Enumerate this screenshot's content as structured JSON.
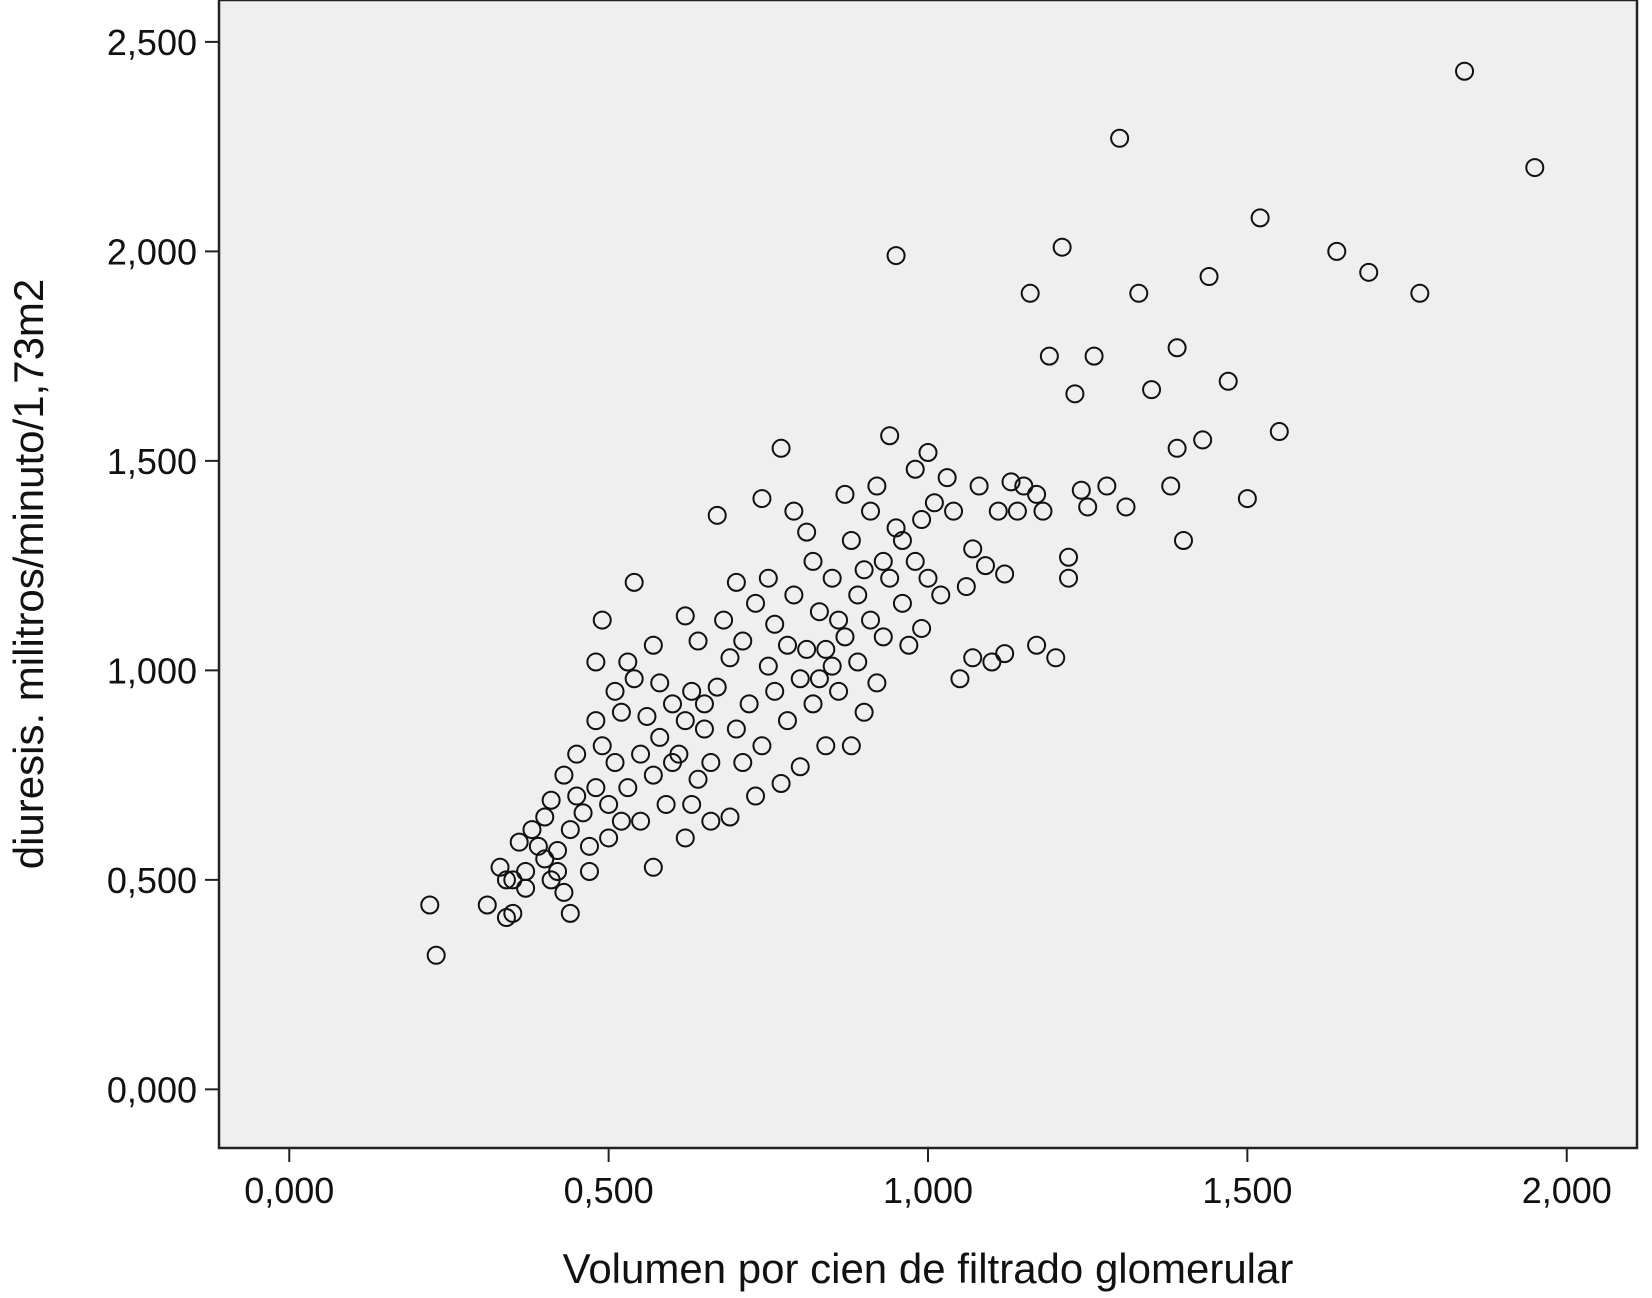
{
  "chart_data": {
    "type": "scatter",
    "title": "",
    "xlabel": "Volumen por cien de filtrado glomerular",
    "ylabel": "diuresis. militros/minuto/1,73m2",
    "xlim": [
      -0.11,
      2.11
    ],
    "ylim": [
      -0.14,
      2.6
    ],
    "x_ticks": [
      0,
      0.5,
      1.0,
      1.5,
      2.0
    ],
    "x_tick_labels": [
      "0,000",
      "0,500",
      "1,000",
      "1,500",
      "2,000"
    ],
    "y_ticks": [
      0,
      0.5,
      1.0,
      1.5,
      2.0,
      2.5
    ],
    "y_tick_labels": [
      "0,000",
      "0,500",
      "1,000",
      "1,500",
      "2,000",
      "2,500"
    ],
    "grid": false,
    "plot_background": "#efefef",
    "marker": "open-circle",
    "marker_color": "#111111",
    "points": [
      [
        0.22,
        0.44
      ],
      [
        0.23,
        0.32
      ],
      [
        0.31,
        0.44
      ],
      [
        0.33,
        0.53
      ],
      [
        0.34,
        0.5
      ],
      [
        0.34,
        0.41
      ],
      [
        0.35,
        0.42
      ],
      [
        0.35,
        0.5
      ],
      [
        0.36,
        0.59
      ],
      [
        0.37,
        0.52
      ],
      [
        0.37,
        0.48
      ],
      [
        0.38,
        0.62
      ],
      [
        0.39,
        0.58
      ],
      [
        0.4,
        0.65
      ],
      [
        0.4,
        0.55
      ],
      [
        0.41,
        0.69
      ],
      [
        0.41,
        0.5
      ],
      [
        0.42,
        0.52
      ],
      [
        0.42,
        0.57
      ],
      [
        0.43,
        0.75
      ],
      [
        0.43,
        0.47
      ],
      [
        0.44,
        0.42
      ],
      [
        0.44,
        0.62
      ],
      [
        0.45,
        0.7
      ],
      [
        0.45,
        0.8
      ],
      [
        0.46,
        0.66
      ],
      [
        0.47,
        0.52
      ],
      [
        0.47,
        0.58
      ],
      [
        0.48,
        0.88
      ],
      [
        0.48,
        0.72
      ],
      [
        0.48,
        1.02
      ],
      [
        0.49,
        1.12
      ],
      [
        0.49,
        0.82
      ],
      [
        0.5,
        0.68
      ],
      [
        0.5,
        0.6
      ],
      [
        0.51,
        0.78
      ],
      [
        0.51,
        0.95
      ],
      [
        0.52,
        0.64
      ],
      [
        0.52,
        0.9
      ],
      [
        0.53,
        0.72
      ],
      [
        0.53,
        1.02
      ],
      [
        0.54,
        0.98
      ],
      [
        0.54,
        1.21
      ],
      [
        0.55,
        0.8
      ],
      [
        0.55,
        0.64
      ],
      [
        0.56,
        0.89
      ],
      [
        0.57,
        0.75
      ],
      [
        0.57,
        1.06
      ],
      [
        0.57,
        0.53
      ],
      [
        0.58,
        0.84
      ],
      [
        0.58,
        0.97
      ],
      [
        0.59,
        0.68
      ],
      [
        0.6,
        0.78
      ],
      [
        0.6,
        0.92
      ],
      [
        0.61,
        0.8
      ],
      [
        0.62,
        0.88
      ],
      [
        0.62,
        1.13
      ],
      [
        0.62,
        0.6
      ],
      [
        0.63,
        0.95
      ],
      [
        0.63,
        0.68
      ],
      [
        0.64,
        0.74
      ],
      [
        0.64,
        1.07
      ],
      [
        0.65,
        0.86
      ],
      [
        0.65,
        0.92
      ],
      [
        0.66,
        0.78
      ],
      [
        0.66,
        0.64
      ],
      [
        0.67,
        1.37
      ],
      [
        0.67,
        0.96
      ],
      [
        0.68,
        1.12
      ],
      [
        0.69,
        1.03
      ],
      [
        0.69,
        0.65
      ],
      [
        0.7,
        0.86
      ],
      [
        0.7,
        1.21
      ],
      [
        0.71,
        0.78
      ],
      [
        0.71,
        1.07
      ],
      [
        0.72,
        0.92
      ],
      [
        0.73,
        1.16
      ],
      [
        0.73,
        0.7
      ],
      [
        0.74,
        1.41
      ],
      [
        0.74,
        0.82
      ],
      [
        0.75,
        1.01
      ],
      [
        0.75,
        1.22
      ],
      [
        0.76,
        0.95
      ],
      [
        0.76,
        1.11
      ],
      [
        0.77,
        0.73
      ],
      [
        0.77,
        1.53
      ],
      [
        0.78,
        1.06
      ],
      [
        0.78,
        0.88
      ],
      [
        0.79,
        1.38
      ],
      [
        0.79,
        1.18
      ],
      [
        0.8,
        0.98
      ],
      [
        0.8,
        0.77
      ],
      [
        0.81,
        1.33
      ],
      [
        0.81,
        1.05
      ],
      [
        0.82,
        1.26
      ],
      [
        0.82,
        0.92
      ],
      [
        0.83,
        0.98
      ],
      [
        0.83,
        1.14
      ],
      [
        0.84,
        0.82
      ],
      [
        0.84,
        1.05
      ],
      [
        0.85,
        1.22
      ],
      [
        0.85,
        1.01
      ],
      [
        0.86,
        1.12
      ],
      [
        0.86,
        0.95
      ],
      [
        0.87,
        1.42
      ],
      [
        0.87,
        1.08
      ],
      [
        0.88,
        1.31
      ],
      [
        0.88,
        0.82
      ],
      [
        0.89,
        1.18
      ],
      [
        0.89,
        1.02
      ],
      [
        0.9,
        0.9
      ],
      [
        0.9,
        1.24
      ],
      [
        0.91,
        1.12
      ],
      [
        0.91,
        1.38
      ],
      [
        0.92,
        0.97
      ],
      [
        0.92,
        1.44
      ],
      [
        0.93,
        1.26
      ],
      [
        0.93,
        1.08
      ],
      [
        0.94,
        1.56
      ],
      [
        0.94,
        1.22
      ],
      [
        0.95,
        1.99
      ],
      [
        0.95,
        1.34
      ],
      [
        0.96,
        1.16
      ],
      [
        0.96,
        1.31
      ],
      [
        0.97,
        1.06
      ],
      [
        0.98,
        1.48
      ],
      [
        0.98,
        1.26
      ],
      [
        0.99,
        1.36
      ],
      [
        0.99,
        1.1
      ],
      [
        1.0,
        1.52
      ],
      [
        1.0,
        1.22
      ],
      [
        1.01,
        1.4
      ],
      [
        1.02,
        1.18
      ],
      [
        1.03,
        1.46
      ],
      [
        1.04,
        1.38
      ],
      [
        1.05,
        0.98
      ],
      [
        1.06,
        1.2
      ],
      [
        1.07,
        1.29
      ],
      [
        1.07,
        1.03
      ],
      [
        1.08,
        1.44
      ],
      [
        1.09,
        1.25
      ],
      [
        1.1,
        1.02
      ],
      [
        1.11,
        1.38
      ],
      [
        1.12,
        1.23
      ],
      [
        1.12,
        1.04
      ],
      [
        1.13,
        1.45
      ],
      [
        1.14,
        1.38
      ],
      [
        1.15,
        1.44
      ],
      [
        1.16,
        1.9
      ],
      [
        1.17,
        1.06
      ],
      [
        1.17,
        1.42
      ],
      [
        1.18,
        1.38
      ],
      [
        1.19,
        1.75
      ],
      [
        1.2,
        1.03
      ],
      [
        1.21,
        2.01
      ],
      [
        1.22,
        1.27
      ],
      [
        1.22,
        1.22
      ],
      [
        1.23,
        1.66
      ],
      [
        1.24,
        1.43
      ],
      [
        1.25,
        1.39
      ],
      [
        1.26,
        1.75
      ],
      [
        1.28,
        1.44
      ],
      [
        1.3,
        2.27
      ],
      [
        1.31,
        1.39
      ],
      [
        1.33,
        1.9
      ],
      [
        1.35,
        1.67
      ],
      [
        1.38,
        1.44
      ],
      [
        1.39,
        1.77
      ],
      [
        1.39,
        1.53
      ],
      [
        1.4,
        1.31
      ],
      [
        1.43,
        1.55
      ],
      [
        1.44,
        1.94
      ],
      [
        1.47,
        1.69
      ],
      [
        1.5,
        1.41
      ],
      [
        1.52,
        2.08
      ],
      [
        1.55,
        1.57
      ],
      [
        1.64,
        2.0
      ],
      [
        1.69,
        1.95
      ],
      [
        1.77,
        1.9
      ],
      [
        1.84,
        2.43
      ],
      [
        1.95,
        2.2
      ]
    ]
  }
}
